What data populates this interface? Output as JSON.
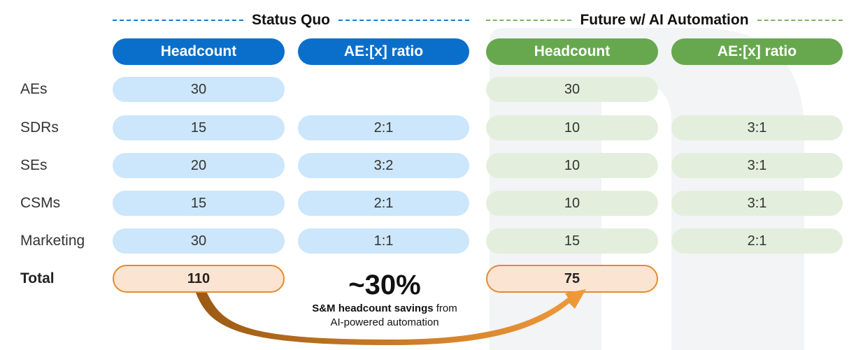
{
  "sections": {
    "status_quo": {
      "title": "Status Quo",
      "headers": [
        "Headcount",
        "AE:[x] ratio"
      ]
    },
    "future": {
      "title": "Future w/ AI Automation",
      "headers": [
        "Headcount",
        "AE:[x] ratio"
      ]
    }
  },
  "rows": [
    {
      "label": "AEs",
      "sq_headcount": "30",
      "sq_ratio": "",
      "fu_headcount": "30",
      "fu_ratio": ""
    },
    {
      "label": "SDRs",
      "sq_headcount": "15",
      "sq_ratio": "2:1",
      "fu_headcount": "10",
      "fu_ratio": "3:1"
    },
    {
      "label": "SEs",
      "sq_headcount": "20",
      "sq_ratio": "3:2",
      "fu_headcount": "10",
      "fu_ratio": "3:1"
    },
    {
      "label": "CSMs",
      "sq_headcount": "15",
      "sq_ratio": "2:1",
      "fu_headcount": "10",
      "fu_ratio": "3:1"
    },
    {
      "label": "Marketing",
      "sq_headcount": "30",
      "sq_ratio": "1:1",
      "fu_headcount": "15",
      "fu_ratio": "2:1"
    }
  ],
  "total": {
    "label": "Total",
    "sq_headcount": "110",
    "fu_headcount": "75"
  },
  "savings": {
    "value": "~30%",
    "desc_bold": "S&M headcount savings",
    "desc_rest": " from",
    "desc_line2": "AI-powered automation"
  },
  "colors": {
    "status_quo_accent": "#0a6fcb",
    "status_quo_cell": "#cce6fb",
    "future_accent": "#67a84f",
    "future_cell": "#e3efdc",
    "total_cell": "#fbe4d1",
    "total_border": "#e58a2e"
  }
}
